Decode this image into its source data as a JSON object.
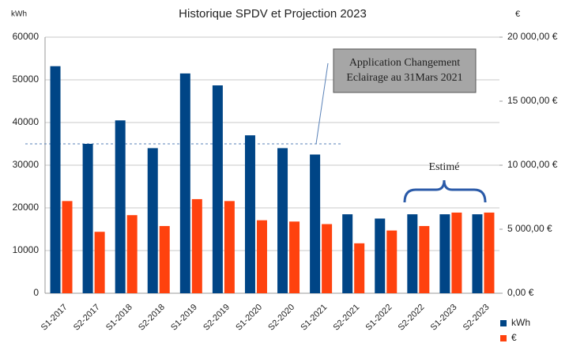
{
  "chart_data": {
    "type": "bar",
    "title": "Historique SPDV et Projection 2023",
    "y_unit": "kWh",
    "y2_unit": "€",
    "categories": [
      "S1-2017",
      "S2-2017",
      "S1-2018",
      "S2-2018",
      "S1-2019",
      "S2-2019",
      "S1-2020",
      "S2-2020",
      "S1-2021",
      "S2-2021",
      "S1-2022",
      "S2-2022",
      "S1-2023",
      "S2-2023"
    ],
    "series": [
      {
        "name": "kWh",
        "color": "#004586",
        "values": [
          53200,
          35000,
          40500,
          34000,
          51500,
          48700,
          37000,
          34000,
          32500,
          18500,
          17500,
          18500,
          18500,
          18500
        ]
      },
      {
        "name": "€",
        "color": "#ff420e",
        "axis": "y2",
        "values": [
          7200,
          4800,
          6100,
          5250,
          7350,
          7200,
          5700,
          5600,
          5400,
          3900,
          4900,
          5250,
          6300,
          6300
        ]
      }
    ],
    "ylim": [
      0,
      60000
    ],
    "yticks": [
      0,
      10000,
      20000,
      30000,
      40000,
      50000,
      60000
    ],
    "y2lim": [
      0,
      20000
    ],
    "y2ticks": [
      {
        "value": 0,
        "label": "0,00 €"
      },
      {
        "value": 5000,
        "label": "5 000,00 €"
      },
      {
        "value": 10000,
        "label": "10 000,00 €"
      },
      {
        "value": 15000,
        "label": "15 000,00 €"
      },
      {
        "value": 20000,
        "label": "20 000,00 €"
      }
    ],
    "grid": true,
    "legend": "bottom-right",
    "reference_line": 35000,
    "annotations": [
      {
        "lines": [
          "Application Changement",
          "Eclairage au 31Mars 2021"
        ]
      },
      {
        "text": "Estimé"
      }
    ]
  }
}
